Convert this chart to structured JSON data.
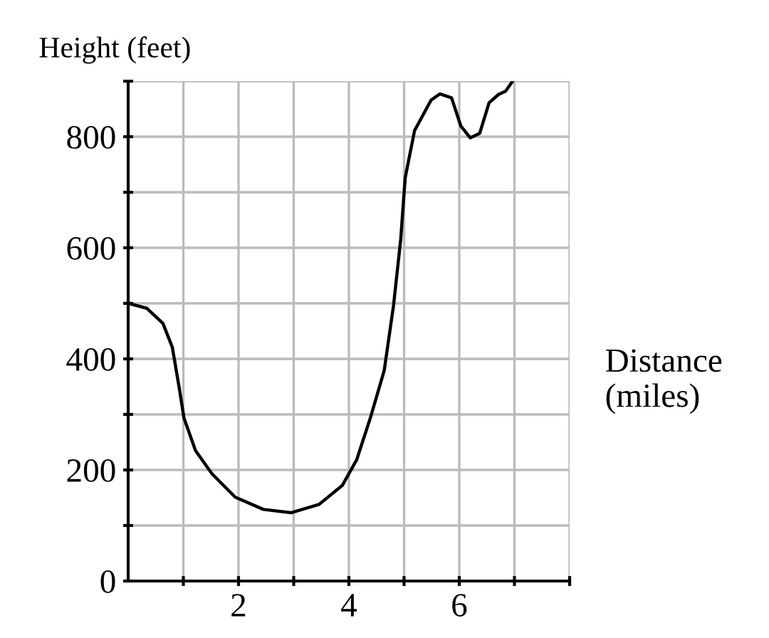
{
  "chart_data": {
    "type": "line",
    "xlabel": "Distance\n(miles)",
    "ylabel": "Height (feet)",
    "x": [
      0,
      0.34,
      0.63,
      0.8,
      0.93,
      1.01,
      1.22,
      1.52,
      1.94,
      2.45,
      2.95,
      3.46,
      3.88,
      4.14,
      4.39,
      4.64,
      4.81,
      4.94,
      5.02,
      5.19,
      5.49,
      5.65,
      5.86,
      6.03,
      6.2,
      6.37,
      6.54,
      6.71,
      6.84,
      6.96
    ],
    "series": [
      {
        "color": "#000000",
        "values": [
          500,
          491,
          464,
          421,
          345,
          294,
          235,
          193,
          151,
          129,
          123,
          138,
          172,
          218,
          294,
          379,
          497,
          616,
          726,
          811,
          866,
          877,
          870,
          819,
          798,
          806,
          861,
          876,
          882,
          899
        ]
      }
    ],
    "xlim": [
      0,
      8
    ],
    "ylim": [
      0,
      900
    ],
    "xticks": [
      {
        "value": 1,
        "label": null
      },
      2,
      {
        "value": 3,
        "label": null
      },
      4,
      {
        "value": 5,
        "label": null
      },
      6,
      {
        "value": 7,
        "label": null
      },
      {
        "value": 8,
        "label": null
      }
    ],
    "yticks": [
      0,
      {
        "value": 100,
        "label": null
      },
      200,
      {
        "value": 300,
        "label": null
      },
      400,
      {
        "value": 500,
        "label": null
      },
      600,
      {
        "value": 700,
        "label": null
      },
      800,
      {
        "value": 900,
        "label": null
      }
    ],
    "grid": true,
    "marker": "none",
    "line_style": "solid",
    "legend": false
  }
}
